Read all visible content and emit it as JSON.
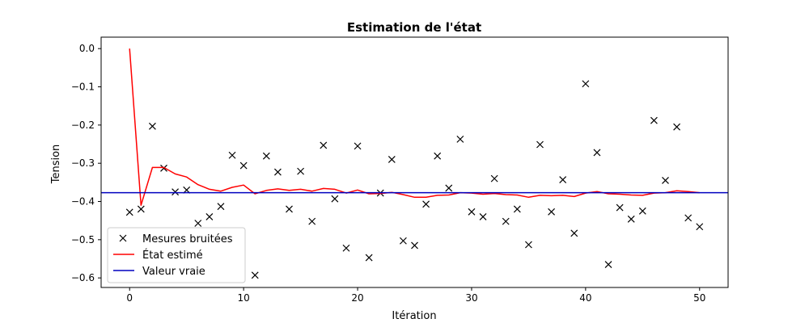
{
  "chart_data": {
    "type": "line",
    "title": "Estimation de l'état",
    "xlabel": "Itération",
    "ylabel": "Tension",
    "xlim": [
      -2.5,
      52.5
    ],
    "ylim": [
      -0.625,
      0.03
    ],
    "xticks": [
      0,
      10,
      20,
      30,
      40,
      50
    ],
    "xtick_labels": [
      "0",
      "10",
      "20",
      "30",
      "40",
      "50"
    ],
    "yticks": [
      0.0,
      -0.1,
      -0.2,
      -0.3,
      -0.4,
      -0.5,
      -0.6
    ],
    "ytick_labels": [
      "0.0",
      "−0.1",
      "−0.2",
      "−0.3",
      "−0.4",
      "−0.5",
      "−0.6"
    ],
    "grid": false,
    "legend_position": "lower-left",
    "colors": {
      "noisy": "#000000",
      "estimate": "#ff0000",
      "truth": "#0000bf"
    },
    "series": [
      {
        "name": "Mesures bruitées",
        "kind": "scatter",
        "marker": "x",
        "x": [
          0,
          1,
          2,
          3,
          4,
          5,
          6,
          7,
          8,
          9,
          10,
          11,
          12,
          13,
          14,
          15,
          16,
          17,
          18,
          19,
          20,
          21,
          22,
          23,
          24,
          25,
          26,
          27,
          28,
          29,
          30,
          31,
          32,
          33,
          34,
          35,
          36,
          37,
          38,
          39,
          40,
          41,
          42,
          43,
          44,
          45,
          46,
          47,
          48,
          49,
          50
        ],
        "y": [
          -0.428,
          -0.42,
          -0.203,
          -0.313,
          -0.375,
          -0.37,
          -0.457,
          -0.44,
          -0.413,
          -0.279,
          -0.306,
          -0.593,
          -0.281,
          -0.323,
          -0.42,
          -0.321,
          -0.452,
          -0.253,
          -0.393,
          -0.522,
          -0.255,
          -0.547,
          -0.378,
          -0.29,
          -0.503,
          -0.515,
          -0.407,
          -0.281,
          -0.365,
          -0.237,
          -0.427,
          -0.44,
          -0.34,
          -0.452,
          -0.42,
          -0.513,
          -0.251,
          -0.427,
          -0.343,
          -0.483,
          -0.092,
          -0.272,
          -0.565,
          -0.416,
          -0.446,
          -0.425,
          -0.188,
          -0.345,
          -0.205,
          -0.443,
          -0.466
        ]
      },
      {
        "name": "État estimé",
        "kind": "line",
        "x": [
          0,
          1,
          2,
          3,
          4,
          5,
          6,
          7,
          8,
          9,
          10,
          11,
          12,
          13,
          14,
          15,
          16,
          17,
          18,
          19,
          20,
          21,
          22,
          23,
          24,
          25,
          26,
          27,
          28,
          29,
          30,
          31,
          32,
          33,
          34,
          35,
          36,
          37,
          38,
          39,
          40,
          41,
          42,
          43,
          44,
          45,
          46,
          47,
          48,
          49,
          50
        ],
        "y": [
          0.0,
          -0.41,
          -0.311,
          -0.311,
          -0.328,
          -0.336,
          -0.356,
          -0.368,
          -0.373,
          -0.363,
          -0.357,
          -0.38,
          -0.371,
          -0.367,
          -0.371,
          -0.368,
          -0.373,
          -0.366,
          -0.368,
          -0.378,
          -0.37,
          -0.38,
          -0.379,
          -0.376,
          -0.382,
          -0.389,
          -0.389,
          -0.384,
          -0.383,
          -0.377,
          -0.378,
          -0.381,
          -0.379,
          -0.382,
          -0.383,
          -0.389,
          -0.384,
          -0.385,
          -0.384,
          -0.387,
          -0.378,
          -0.374,
          -0.38,
          -0.381,
          -0.383,
          -0.384,
          -0.378,
          -0.377,
          -0.372,
          -0.374,
          -0.377
        ]
      },
      {
        "name": "Valeur vraie",
        "kind": "hline",
        "y": -0.377
      }
    ]
  }
}
